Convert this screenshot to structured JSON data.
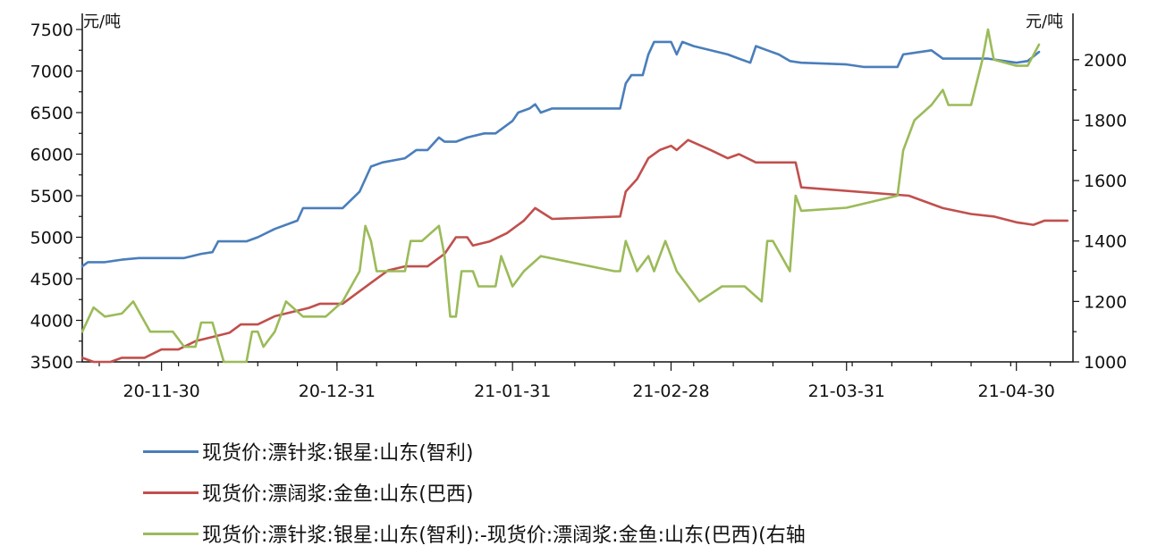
{
  "chart_data": {
    "type": "line",
    "left_axis": {
      "unit": "元/吨",
      "ylim": [
        3500,
        7500
      ],
      "ticks": [
        3500,
        4000,
        4500,
        5000,
        5500,
        6000,
        6500,
        7000,
        7500
      ]
    },
    "right_axis": {
      "unit": "元/吨",
      "ylim": [
        1000,
        2100
      ],
      "ticks": [
        1000,
        1200,
        1400,
        1600,
        1800,
        2000
      ]
    },
    "x_tick_labels": [
      "20-11-30",
      "20-12-31",
      "21-01-31",
      "21-02-28",
      "21-03-31",
      "21-04-30"
    ],
    "x_tick_dates": [
      "2020-11-30",
      "2020-12-31",
      "2021-01-31",
      "2021-02-28",
      "2021-03-31",
      "2021-04-30"
    ],
    "x_range": [
      "2020-11-16",
      "2021-05-10"
    ],
    "legend_position": "bottom",
    "series": [
      {
        "name": "现货价:漂针浆:银星:山东(智利)",
        "color": "#4a7ebb",
        "axis": "left",
        "points": [
          [
            "2020-11-16",
            4650
          ],
          [
            "2020-11-17",
            4700
          ],
          [
            "2020-11-20",
            4700
          ],
          [
            "2020-11-23",
            4730
          ],
          [
            "2020-11-26",
            4750
          ],
          [
            "2020-12-04",
            4750
          ],
          [
            "2020-12-07",
            4800
          ],
          [
            "2020-12-09",
            4820
          ],
          [
            "2020-12-10",
            4950
          ],
          [
            "2020-12-15",
            4950
          ],
          [
            "2020-12-17",
            5000
          ],
          [
            "2020-12-20",
            5100
          ],
          [
            "2020-12-24",
            5200
          ],
          [
            "2020-12-25",
            5350
          ],
          [
            "2021-01-01",
            5350
          ],
          [
            "2021-01-04",
            5550
          ],
          [
            "2021-01-06",
            5850
          ],
          [
            "2021-01-08",
            5900
          ],
          [
            "2021-01-12",
            5950
          ],
          [
            "2021-01-14",
            6050
          ],
          [
            "2021-01-16",
            6050
          ],
          [
            "2021-01-18",
            6200
          ],
          [
            "2021-01-19",
            6150
          ],
          [
            "2021-01-21",
            6150
          ],
          [
            "2021-01-23",
            6200
          ],
          [
            "2021-01-26",
            6250
          ],
          [
            "2021-01-28",
            6250
          ],
          [
            "2021-01-31",
            6400
          ],
          [
            "2021-02-01",
            6500
          ],
          [
            "2021-02-03",
            6550
          ],
          [
            "2021-02-04",
            6600
          ],
          [
            "2021-02-05",
            6500
          ],
          [
            "2021-02-07",
            6550
          ],
          [
            "2021-02-19",
            6550
          ],
          [
            "2021-02-20",
            6850
          ],
          [
            "2021-02-21",
            6950
          ],
          [
            "2021-02-23",
            6950
          ],
          [
            "2021-02-24",
            7200
          ],
          [
            "2021-02-25",
            7350
          ],
          [
            "2021-02-28",
            7350
          ],
          [
            "2021-03-01",
            7200
          ],
          [
            "2021-03-02",
            7350
          ],
          [
            "2021-03-04",
            7300
          ],
          [
            "2021-03-07",
            7250
          ],
          [
            "2021-03-10",
            7200
          ],
          [
            "2021-03-12",
            7150
          ],
          [
            "2021-03-14",
            7100
          ],
          [
            "2021-03-15",
            7300
          ],
          [
            "2021-03-17",
            7250
          ],
          [
            "2021-03-19",
            7200
          ],
          [
            "2021-03-21",
            7120
          ],
          [
            "2021-03-23",
            7100
          ],
          [
            "2021-03-31",
            7080
          ],
          [
            "2021-04-03",
            7050
          ],
          [
            "2021-04-09",
            7050
          ],
          [
            "2021-04-10",
            7200
          ],
          [
            "2021-04-15",
            7250
          ],
          [
            "2021-04-17",
            7150
          ],
          [
            "2021-04-22",
            7150
          ],
          [
            "2021-04-25",
            7150
          ],
          [
            "2021-04-30",
            7100
          ],
          [
            "2021-05-02",
            7120
          ],
          [
            "2021-05-04",
            7230
          ]
        ]
      },
      {
        "name": "现货价:漂阔浆:金鱼:山东(巴西)",
        "color": "#c0504d",
        "axis": "left",
        "points": [
          [
            "2020-11-16",
            3550
          ],
          [
            "2020-11-18",
            3500
          ],
          [
            "2020-11-21",
            3500
          ],
          [
            "2020-11-23",
            3550
          ],
          [
            "2020-11-27",
            3550
          ],
          [
            "2020-11-30",
            3650
          ],
          [
            "2020-12-03",
            3650
          ],
          [
            "2020-12-06",
            3750
          ],
          [
            "2020-12-09",
            3800
          ],
          [
            "2020-12-12",
            3850
          ],
          [
            "2020-12-14",
            3950
          ],
          [
            "2020-12-17",
            3950
          ],
          [
            "2020-12-20",
            4050
          ],
          [
            "2020-12-23",
            4100
          ],
          [
            "2020-12-26",
            4150
          ],
          [
            "2020-12-28",
            4200
          ],
          [
            "2021-01-01",
            4200
          ],
          [
            "2021-01-03",
            4300
          ],
          [
            "2021-01-06",
            4450
          ],
          [
            "2021-01-09",
            4600
          ],
          [
            "2021-01-12",
            4650
          ],
          [
            "2021-01-16",
            4650
          ],
          [
            "2021-01-19",
            4800
          ],
          [
            "2021-01-21",
            5000
          ],
          [
            "2021-01-23",
            5000
          ],
          [
            "2021-01-24",
            4900
          ],
          [
            "2021-01-27",
            4950
          ],
          [
            "2021-01-30",
            5050
          ],
          [
            "2021-02-02",
            5200
          ],
          [
            "2021-02-04",
            5350
          ],
          [
            "2021-02-07",
            5220
          ],
          [
            "2021-02-19",
            5250
          ],
          [
            "2021-02-20",
            5550
          ],
          [
            "2021-02-22",
            5700
          ],
          [
            "2021-02-24",
            5950
          ],
          [
            "2021-02-26",
            6050
          ],
          [
            "2021-02-28",
            6100
          ],
          [
            "2021-03-01",
            6050
          ],
          [
            "2021-03-03",
            6170
          ],
          [
            "2021-03-07",
            6050
          ],
          [
            "2021-03-10",
            5950
          ],
          [
            "2021-03-12",
            6000
          ],
          [
            "2021-03-15",
            5900
          ],
          [
            "2021-03-22",
            5900
          ],
          [
            "2021-03-23",
            5600
          ],
          [
            "2021-04-11",
            5500
          ],
          [
            "2021-04-17",
            5350
          ],
          [
            "2021-04-22",
            5280
          ],
          [
            "2021-04-26",
            5250
          ],
          [
            "2021-04-30",
            5180
          ],
          [
            "2021-05-03",
            5150
          ],
          [
            "2021-05-05",
            5200
          ],
          [
            "2021-05-09",
            5200
          ]
        ]
      },
      {
        "name": "现货价:漂针浆:银星:山东(智利):-现货价:漂阔浆:金鱼:山东(巴西)(右轴",
        "color": "#9bbb59",
        "axis": "right",
        "points": [
          [
            "2020-11-16",
            1100
          ],
          [
            "2020-11-18",
            1180
          ],
          [
            "2020-11-20",
            1150
          ],
          [
            "2020-11-23",
            1160
          ],
          [
            "2020-11-25",
            1200
          ],
          [
            "2020-11-28",
            1100
          ],
          [
            "2020-12-02",
            1100
          ],
          [
            "2020-12-04",
            1050
          ],
          [
            "2020-12-06",
            1050
          ],
          [
            "2020-12-07",
            1130
          ],
          [
            "2020-12-09",
            1130
          ],
          [
            "2020-12-11",
            1000
          ],
          [
            "2020-12-15",
            1000
          ],
          [
            "2020-12-16",
            1100
          ],
          [
            "2020-12-17",
            1100
          ],
          [
            "2020-12-18",
            1050
          ],
          [
            "2020-12-20",
            1100
          ],
          [
            "2020-12-22",
            1200
          ],
          [
            "2020-12-25",
            1150
          ],
          [
            "2020-12-29",
            1150
          ],
          [
            "2021-01-01",
            1200
          ],
          [
            "2021-01-04",
            1300
          ],
          [
            "2021-01-05",
            1450
          ],
          [
            "2021-01-06",
            1400
          ],
          [
            "2021-01-07",
            1300
          ],
          [
            "2021-01-12",
            1300
          ],
          [
            "2021-01-13",
            1400
          ],
          [
            "2021-01-15",
            1400
          ],
          [
            "2021-01-18",
            1450
          ],
          [
            "2021-01-19",
            1350
          ],
          [
            "2021-01-20",
            1150
          ],
          [
            "2021-01-21",
            1150
          ],
          [
            "2021-01-22",
            1300
          ],
          [
            "2021-01-24",
            1300
          ],
          [
            "2021-01-25",
            1250
          ],
          [
            "2021-01-28",
            1250
          ],
          [
            "2021-01-29",
            1350
          ],
          [
            "2021-01-31",
            1250
          ],
          [
            "2021-02-02",
            1300
          ],
          [
            "2021-02-05",
            1350
          ],
          [
            "2021-02-18",
            1300
          ],
          [
            "2021-02-19",
            1300
          ],
          [
            "2021-02-20",
            1400
          ],
          [
            "2021-02-22",
            1300
          ],
          [
            "2021-02-24",
            1350
          ],
          [
            "2021-02-25",
            1300
          ],
          [
            "2021-02-27",
            1400
          ],
          [
            "2021-02-28",
            1350
          ],
          [
            "2021-03-01",
            1300
          ],
          [
            "2021-03-03",
            1250
          ],
          [
            "2021-03-05",
            1200
          ],
          [
            "2021-03-09",
            1250
          ],
          [
            "2021-03-13",
            1250
          ],
          [
            "2021-03-16",
            1200
          ],
          [
            "2021-03-17",
            1400
          ],
          [
            "2021-03-18",
            1400
          ],
          [
            "2021-03-21",
            1300
          ],
          [
            "2021-03-22",
            1550
          ],
          [
            "2021-03-23",
            1500
          ],
          [
            "2021-03-31",
            1510
          ],
          [
            "2021-04-09",
            1550
          ],
          [
            "2021-04-10",
            1700
          ],
          [
            "2021-04-12",
            1800
          ],
          [
            "2021-04-15",
            1850
          ],
          [
            "2021-04-17",
            1900
          ],
          [
            "2021-04-18",
            1850
          ],
          [
            "2021-04-22",
            1850
          ],
          [
            "2021-04-24",
            2000
          ],
          [
            "2021-04-25",
            2100
          ],
          [
            "2021-04-26",
            2000
          ],
          [
            "2021-04-30",
            1980
          ],
          [
            "2021-05-02",
            1980
          ],
          [
            "2021-05-04",
            2050
          ]
        ]
      }
    ]
  }
}
